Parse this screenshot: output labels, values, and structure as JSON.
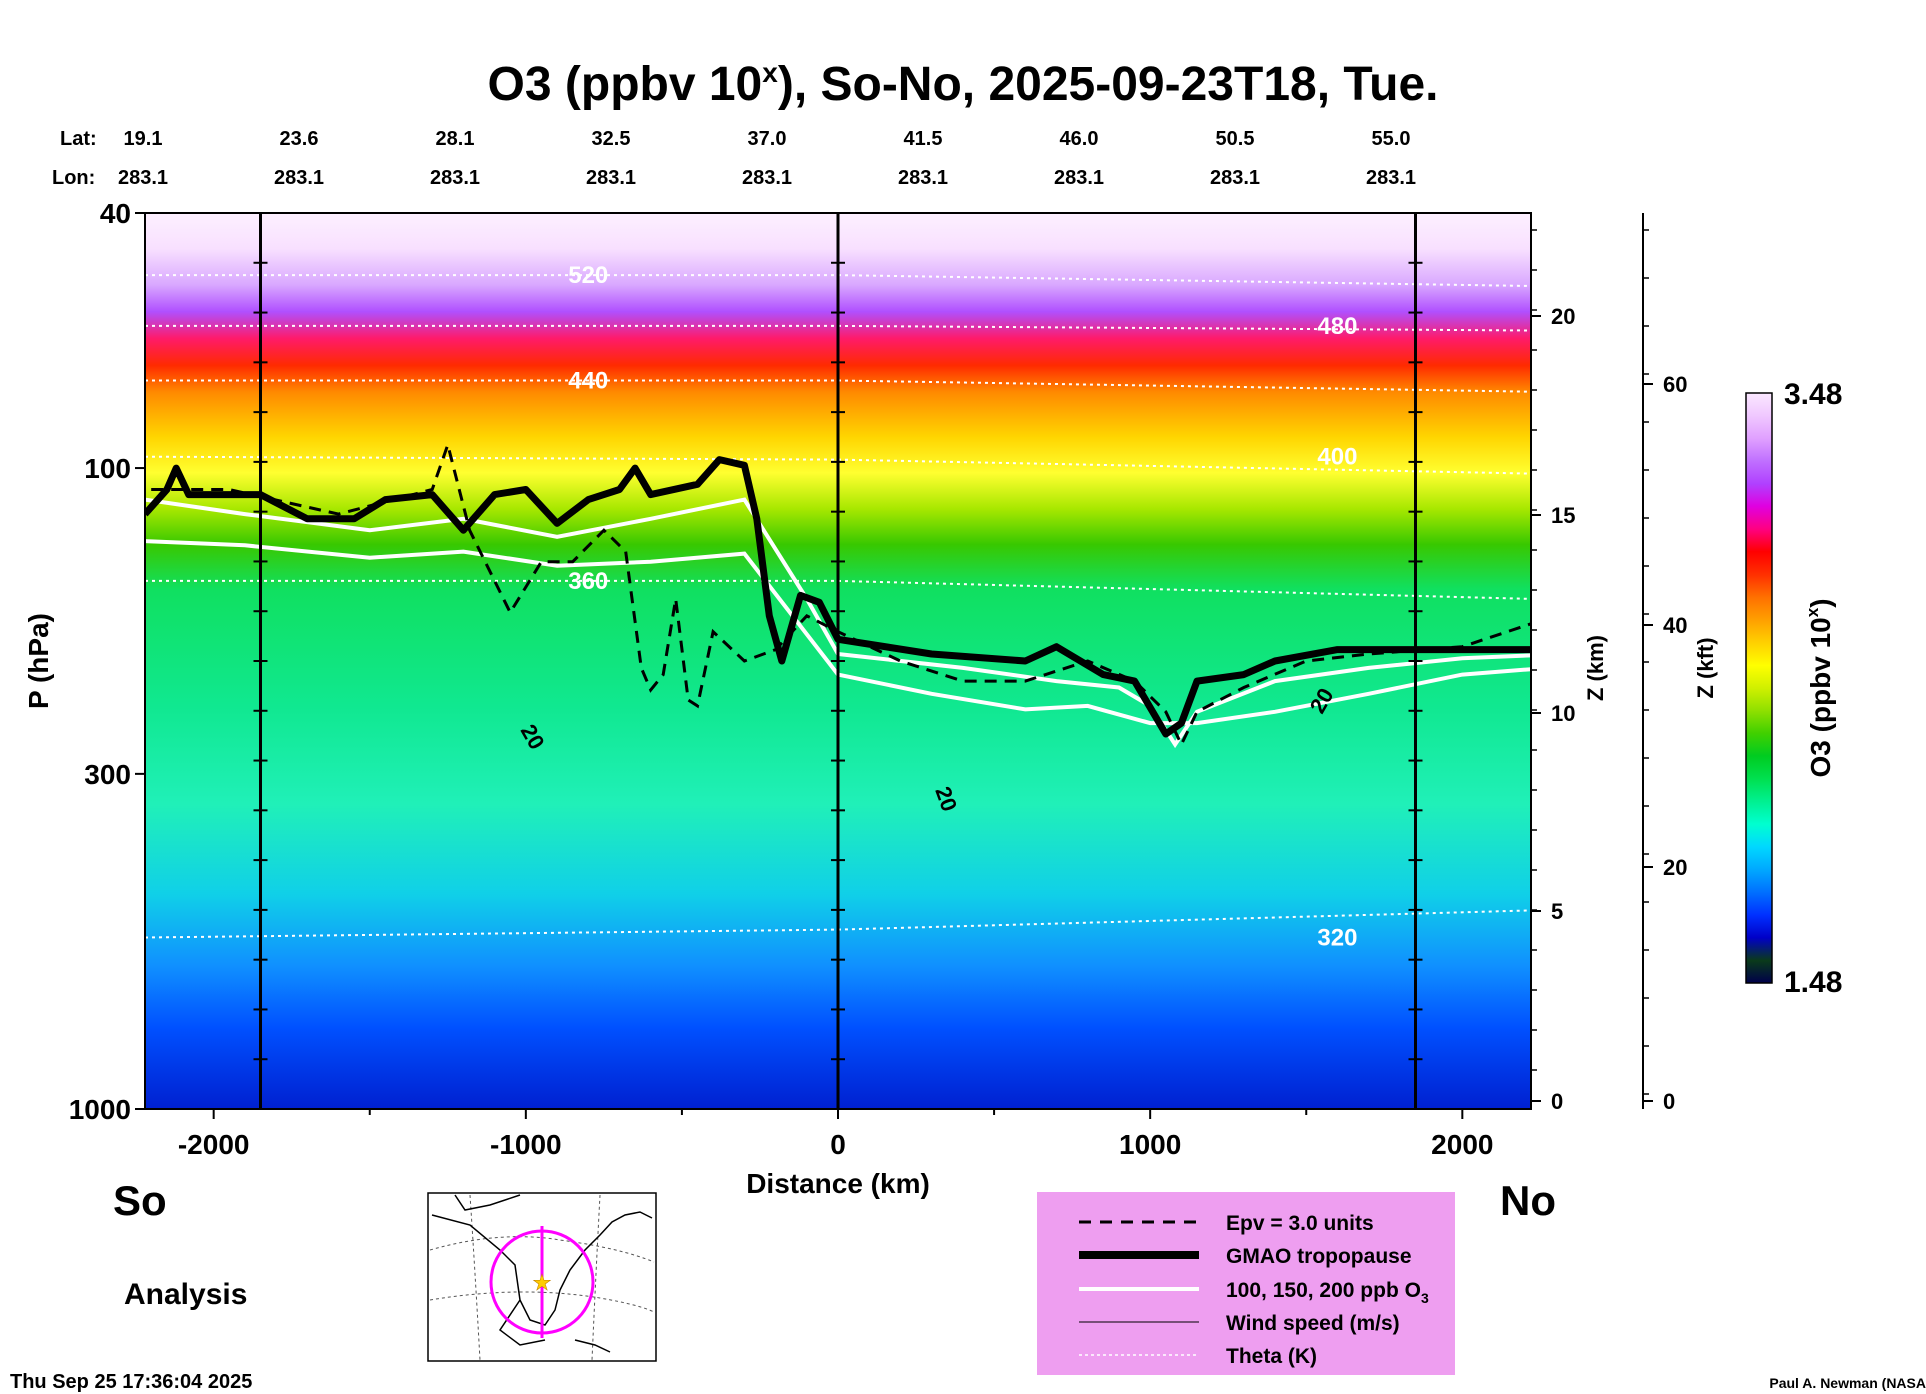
{
  "chart_data": {
    "type": "heatmap",
    "title_prefix": "O3 (ppbv 10",
    "title_sup": "x",
    "title_suffix": "), So-No, 2025-09-23T18, Tue.",
    "lat_label": "Lat:",
    "lon_label": "Lon:",
    "lat_values": [
      "19.1",
      "23.6",
      "28.1",
      "32.5",
      "37.0",
      "41.5",
      "46.0",
      "50.5",
      "55.0"
    ],
    "lon_values": [
      "283.1",
      "283.1",
      "283.1",
      "283.1",
      "283.1",
      "283.1",
      "283.1",
      "283.1",
      "283.1"
    ],
    "xlabel": "Distance (km)",
    "xlim": [
      -2220,
      2220
    ],
    "x_ticks": [
      -2000,
      -1000,
      0,
      1000,
      2000
    ],
    "x_tick_labels": [
      "-2000",
      "-1000",
      "0",
      "1000",
      "2000"
    ],
    "ylabel": "P (hPa)",
    "ylim": [
      1000,
      40
    ],
    "y_scale": "log",
    "y_ticks": [
      40,
      100,
      300,
      1000
    ],
    "y_tick_labels": [
      "40",
      "100",
      "300",
      "1000"
    ],
    "z_km_label": "Z (km)",
    "z_km_ticks": [
      "20",
      "15",
      "10",
      "5",
      "0"
    ],
    "z_kft_label": "Z (kft)",
    "z_kft_ticks": [
      "60",
      "40",
      "20",
      "0"
    ],
    "colorbar_label_prefix": "O3 (ppbv 10",
    "colorbar_label_sup": "x",
    "colorbar_label_suffix": ")",
    "colorbar_max": "3.48",
    "colorbar_min": "1.48",
    "colorbar_colors": [
      "#00004a",
      "#0a3a1a",
      "#0000c8",
      "#0030ff",
      "#0070ff",
      "#00a8ff",
      "#00d8ff",
      "#00ffd0",
      "#00f090",
      "#00e050",
      "#00cc20",
      "#40d000",
      "#90e000",
      "#d0f000",
      "#ffff00",
      "#ffd000",
      "#ffa000",
      "#ff7000",
      "#ff3000",
      "#ff0000",
      "#ff0080",
      "#e000e0",
      "#b040ff",
      "#c070ff",
      "#e0a0ff",
      "#f0c8ff",
      "#fbe8ff"
    ],
    "vertical_lines_km": [
      -1850,
      0,
      1850
    ],
    "tropopause_hpa": [
      [
        -2220,
        118
      ],
      [
        -2150,
        108
      ],
      [
        -2120,
        100
      ],
      [
        -2080,
        110
      ],
      [
        -1850,
        110
      ],
      [
        -1700,
        120
      ],
      [
        -1550,
        120
      ],
      [
        -1450,
        112
      ],
      [
        -1300,
        110
      ],
      [
        -1200,
        125
      ],
      [
        -1100,
        110
      ],
      [
        -1000,
        108
      ],
      [
        -900,
        122
      ],
      [
        -800,
        112
      ],
      [
        -700,
        108
      ],
      [
        -650,
        100
      ],
      [
        -600,
        110
      ],
      [
        -450,
        106
      ],
      [
        -380,
        97
      ],
      [
        -300,
        99
      ],
      [
        -260,
        120
      ],
      [
        -220,
        170
      ],
      [
        -180,
        200
      ],
      [
        -120,
        158
      ],
      [
        -60,
        162
      ],
      [
        0,
        185
      ],
      [
        300,
        195
      ],
      [
        600,
        200
      ],
      [
        700,
        190
      ],
      [
        850,
        210
      ],
      [
        950,
        215
      ],
      [
        1050,
        260
      ],
      [
        1100,
        250
      ],
      [
        1150,
        215
      ],
      [
        1300,
        210
      ],
      [
        1400,
        200
      ],
      [
        1600,
        192
      ],
      [
        2220,
        192
      ]
    ],
    "epv_hpa": [
      [
        -2200,
        108
      ],
      [
        -1950,
        108
      ],
      [
        -1600,
        118
      ],
      [
        -1300,
        108
      ],
      [
        -1250,
        92
      ],
      [
        -1180,
        125
      ],
      [
        -1050,
        168
      ],
      [
        -950,
        140
      ],
      [
        -850,
        140
      ],
      [
        -750,
        125
      ],
      [
        -680,
        135
      ],
      [
        -630,
        205
      ],
      [
        -600,
        222
      ],
      [
        -560,
        210
      ],
      [
        -520,
        160
      ],
      [
        -480,
        230
      ],
      [
        -450,
        235
      ],
      [
        -400,
        180
      ],
      [
        -300,
        200
      ],
      [
        -200,
        192
      ],
      [
        -100,
        170
      ],
      [
        0,
        180
      ],
      [
        200,
        200
      ],
      [
        400,
        215
      ],
      [
        600,
        215
      ],
      [
        800,
        200
      ],
      [
        950,
        215
      ],
      [
        1050,
        240
      ],
      [
        1100,
        270
      ],
      [
        1150,
        240
      ],
      [
        1300,
        220
      ],
      [
        1500,
        200
      ],
      [
        1700,
        195
      ],
      [
        2000,
        190
      ],
      [
        2220,
        175
      ]
    ],
    "ozone_200ppb_hpa": [
      [
        -2220,
        112
      ],
      [
        -1900,
        118
      ],
      [
        -1500,
        125
      ],
      [
        -1200,
        120
      ],
      [
        -900,
        128
      ],
      [
        -600,
        120
      ],
      [
        -300,
        112
      ],
      [
        -100,
        160
      ],
      [
        0,
        195
      ],
      [
        400,
        205
      ],
      [
        700,
        215
      ],
      [
        900,
        220
      ],
      [
        1000,
        235
      ],
      [
        1080,
        270
      ],
      [
        1150,
        240
      ],
      [
        1400,
        215
      ],
      [
        1700,
        205
      ],
      [
        2000,
        198
      ],
      [
        2220,
        196
      ]
    ],
    "ozone_100ppb_hpa": [
      [
        -2220,
        130
      ],
      [
        -1900,
        132
      ],
      [
        -1500,
        138
      ],
      [
        -1200,
        135
      ],
      [
        -900,
        142
      ],
      [
        -600,
        140
      ],
      [
        -300,
        136
      ],
      [
        0,
        210
      ],
      [
        300,
        225
      ],
      [
        600,
        238
      ],
      [
        800,
        235
      ],
      [
        1000,
        250
      ],
      [
        1150,
        250
      ],
      [
        1400,
        240
      ],
      [
        1700,
        225
      ],
      [
        2000,
        210
      ],
      [
        2220,
        206
      ]
    ],
    "theta_levels": [
      {
        "label": "520",
        "pts": [
          [
            -2220,
            50
          ],
          [
            0,
            50
          ],
          [
            2220,
            52
          ]
        ]
      },
      {
        "label": "480",
        "pts": [
          [
            -2220,
            60
          ],
          [
            0,
            60
          ],
          [
            2220,
            61
          ]
        ]
      },
      {
        "label": "440",
        "pts": [
          [
            -2220,
            73
          ],
          [
            0,
            73
          ],
          [
            2220,
            76
          ]
        ]
      },
      {
        "label": "400",
        "pts": [
          [
            -2220,
            96
          ],
          [
            0,
            97
          ],
          [
            2220,
            102
          ]
        ]
      },
      {
        "label": "360",
        "pts": [
          [
            -2220,
            150
          ],
          [
            0,
            150
          ],
          [
            2220,
            160
          ]
        ]
      },
      {
        "label": "320",
        "pts": [
          [
            -2220,
            540
          ],
          [
            0,
            525
          ],
          [
            2220,
            490
          ]
        ]
      }
    ],
    "wind_contour_label": "20",
    "legend_items": [
      "Epv = 3.0 units",
      "GMAO tropopause",
      "100, 150, 200 ppb O",
      "Wind speed (m/s)",
      "Theta (K)"
    ],
    "legend_o3_sub": "3",
    "legend_placement": "bottom-right",
    "side_label_south": "So",
    "side_label_north": "No",
    "analysis_label": "Analysis",
    "timestamp": "Thu Sep 25 17:36:04 2025",
    "credit": "Paul A. Newman (NASA"
  }
}
